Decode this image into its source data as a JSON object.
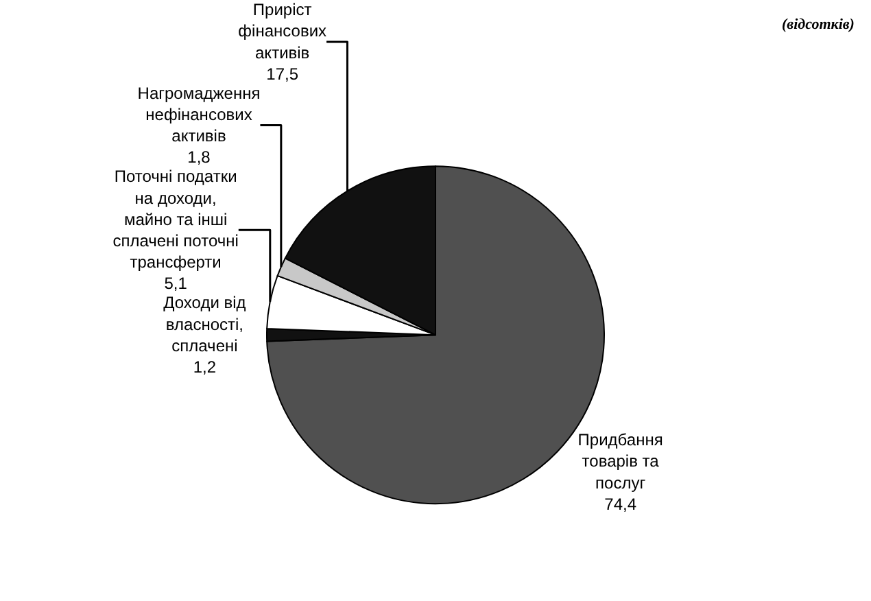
{
  "chart_data": {
    "type": "pie",
    "subtitle": "(відсотків)",
    "categories": [
      "Придбання\nтоварів та\nпослуг",
      "Доходи від\nвласності,\nсплачені",
      "Поточні податки\nна доходи,\nмайно та інші\nсплачені поточні\nтрансферти",
      "Нагромадження\nнефінансових\nактивів",
      "Приріст\nфінансових\nактивів"
    ],
    "values": [
      74.4,
      1.2,
      5.1,
      1.8,
      17.5
    ],
    "value_labels": [
      "74,4",
      "1,2",
      "5,1",
      "1,8",
      "17,5"
    ],
    "colors": [
      "#505050",
      "#111111",
      "#ffffff",
      "#c8c8c8",
      "#111111"
    ]
  }
}
